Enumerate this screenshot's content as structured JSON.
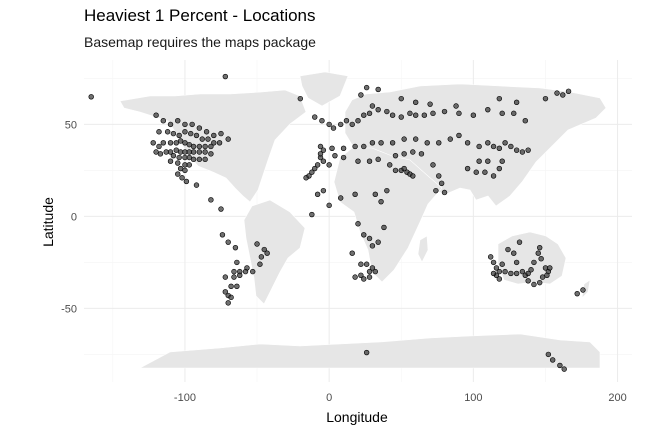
{
  "chart_data": {
    "type": "scatter",
    "title": "Heaviest 1 Percent - Locations",
    "subtitle": "Basemap requires the maps package",
    "xlabel": "Longitude",
    "ylabel": "Latitude",
    "xlim": [
      -170,
      210
    ],
    "ylim": [
      -90,
      85
    ],
    "xticks": [
      -100,
      0,
      100,
      200
    ],
    "yticks": [
      -50,
      0,
      50
    ],
    "grid": true,
    "points": [
      [
        -165,
        65
      ],
      [
        -72,
        76
      ],
      [
        -120,
        55
      ],
      [
        -115,
        52
      ],
      [
        -110,
        50
      ],
      [
        -105,
        52
      ],
      [
        -100,
        50
      ],
      [
        -95,
        50
      ],
      [
        -90,
        48
      ],
      [
        -85,
        46
      ],
      [
        -80,
        44
      ],
      [
        -75,
        45
      ],
      [
        -70,
        42
      ],
      [
        -118,
        46
      ],
      [
        -112,
        46
      ],
      [
        -108,
        45
      ],
      [
        -104,
        44
      ],
      [
        -100,
        46
      ],
      [
        -96,
        45
      ],
      [
        -92,
        44
      ],
      [
        -88,
        42
      ],
      [
        -84,
        42
      ],
      [
        -80,
        40
      ],
      [
        -76,
        40
      ],
      [
        -122,
        40
      ],
      [
        -118,
        38
      ],
      [
        -115,
        40
      ],
      [
        -110,
        40
      ],
      [
        -106,
        40
      ],
      [
        -103,
        41
      ],
      [
        -100,
        40
      ],
      [
        -97,
        39
      ],
      [
        -94,
        38
      ],
      [
        -90,
        38
      ],
      [
        -86,
        38
      ],
      [
        -82,
        38
      ],
      [
        -120,
        35
      ],
      [
        -117,
        34
      ],
      [
        -113,
        35
      ],
      [
        -110,
        35
      ],
      [
        -106,
        36
      ],
      [
        -103,
        35
      ],
      [
        -100,
        35
      ],
      [
        -97,
        35
      ],
      [
        -94,
        35
      ],
      [
        -90,
        35
      ],
      [
        -86,
        35
      ],
      [
        -82,
        34
      ],
      [
        -108,
        33
      ],
      [
        -104,
        32
      ],
      [
        -100,
        32
      ],
      [
        -97,
        32
      ],
      [
        -94,
        31
      ],
      [
        -90,
        31
      ],
      [
        -86,
        31
      ],
      [
        -110,
        30
      ],
      [
        -105,
        29
      ],
      [
        -100,
        28
      ],
      [
        -97,
        28
      ],
      [
        -103,
        26
      ],
      [
        -100,
        25
      ],
      [
        -105,
        23
      ],
      [
        -102,
        21
      ],
      [
        -99,
        19
      ],
      [
        -92,
        17
      ],
      [
        -82,
        9
      ],
      [
        -75,
        4
      ],
      [
        -74,
        -10
      ],
      [
        -70,
        -14
      ],
      [
        -65,
        -17
      ],
      [
        -50,
        -15
      ],
      [
        -45,
        -18
      ],
      [
        -47,
        -22
      ],
      [
        -43,
        -20
      ],
      [
        -64,
        -25
      ],
      [
        -57,
        -28
      ],
      [
        -66,
        -30
      ],
      [
        -62,
        -30
      ],
      [
        -58,
        -30
      ],
      [
        -53,
        -30
      ],
      [
        -48,
        -26
      ],
      [
        -72,
        -33
      ],
      [
        -66,
        -33
      ],
      [
        -62,
        -32
      ],
      [
        -68,
        -38
      ],
      [
        -64,
        -38
      ],
      [
        -72,
        -41
      ],
      [
        -70,
        -43
      ],
      [
        -68,
        -44
      ],
      [
        -70,
        -47
      ],
      [
        -20,
        64
      ],
      [
        -10,
        54
      ],
      [
        -5,
        52
      ],
      [
        0,
        50
      ],
      [
        3,
        48
      ],
      [
        8,
        50
      ],
      [
        12,
        52
      ],
      [
        16,
        50
      ],
      [
        20,
        52
      ],
      [
        24,
        55
      ],
      [
        28,
        56
      ],
      [
        30,
        60
      ],
      [
        34,
        58
      ],
      [
        40,
        57
      ],
      [
        44,
        55
      ],
      [
        50,
        54
      ],
      [
        56,
        56
      ],
      [
        60,
        55
      ],
      [
        66,
        55
      ],
      [
        72,
        56
      ],
      [
        80,
        57
      ],
      [
        90,
        56
      ],
      [
        100,
        55
      ],
      [
        110,
        58
      ],
      [
        120,
        56
      ],
      [
        128,
        56
      ],
      [
        136,
        52
      ],
      [
        22,
        66
      ],
      [
        26,
        70
      ],
      [
        34,
        69
      ],
      [
        50,
        64
      ],
      [
        60,
        62
      ],
      [
        70,
        61
      ],
      [
        88,
        60
      ],
      [
        118,
        64
      ],
      [
        130,
        62
      ],
      [
        150,
        64
      ],
      [
        158,
        67
      ],
      [
        162,
        66
      ],
      [
        166,
        68
      ],
      [
        -6,
        38
      ],
      [
        -4,
        36
      ],
      [
        2,
        37
      ],
      [
        10,
        37
      ],
      [
        18,
        38
      ],
      [
        24,
        38
      ],
      [
        30,
        40
      ],
      [
        36,
        40
      ],
      [
        44,
        40
      ],
      [
        52,
        42
      ],
      [
        60,
        42
      ],
      [
        68,
        40
      ],
      [
        76,
        40
      ],
      [
        84,
        42
      ],
      [
        90,
        44
      ],
      [
        96,
        40
      ],
      [
        104,
        38
      ],
      [
        110,
        40
      ],
      [
        114,
        38
      ],
      [
        118,
        37
      ],
      [
        122,
        40
      ],
      [
        126,
        38
      ],
      [
        130,
        36
      ],
      [
        134,
        35
      ],
      [
        138,
        36
      ],
      [
        -6,
        32
      ],
      [
        -4,
        30
      ],
      [
        0,
        28
      ],
      [
        -8,
        28
      ],
      [
        -10,
        26
      ],
      [
        -12,
        24
      ],
      [
        -14,
        22
      ],
      [
        -16,
        21
      ],
      [
        -6,
        34
      ],
      [
        4,
        33
      ],
      [
        10,
        32
      ],
      [
        20,
        30
      ],
      [
        28,
        30
      ],
      [
        34,
        31
      ],
      [
        42,
        28
      ],
      [
        46,
        25
      ],
      [
        50,
        25
      ],
      [
        54,
        24
      ],
      [
        56,
        23
      ],
      [
        58,
        22
      ],
      [
        52,
        26
      ],
      [
        46,
        33
      ],
      [
        52,
        34
      ],
      [
        58,
        35
      ],
      [
        64,
        34
      ],
      [
        72,
        28
      ],
      [
        76,
        22
      ],
      [
        78,
        18
      ],
      [
        74,
        14
      ],
      [
        80,
        13
      ],
      [
        96,
        26
      ],
      [
        102,
        24
      ],
      [
        108,
        24
      ],
      [
        114,
        22
      ],
      [
        118,
        26
      ],
      [
        110,
        30
      ],
      [
        104,
        30
      ],
      [
        120,
        30
      ],
      [
        -8,
        12
      ],
      [
        0,
        6
      ],
      [
        -4,
        14
      ],
      [
        8,
        10
      ],
      [
        18,
        12
      ],
      [
        32,
        12
      ],
      [
        40,
        14
      ],
      [
        36,
        8
      ],
      [
        -12,
        1
      ],
      [
        20,
        -4
      ],
      [
        24,
        -10
      ],
      [
        28,
        -12
      ],
      [
        30,
        -16
      ],
      [
        34,
        -14
      ],
      [
        38,
        -6
      ],
      [
        16,
        -20
      ],
      [
        22,
        -26
      ],
      [
        26,
        -26
      ],
      [
        28,
        -30
      ],
      [
        30,
        -28
      ],
      [
        22,
        -32
      ],
      [
        18,
        -33
      ],
      [
        24,
        -34
      ],
      [
        28,
        -33
      ],
      [
        32,
        -30
      ],
      [
        26,
        -74
      ],
      [
        152,
        -75
      ],
      [
        155,
        -78
      ],
      [
        160,
        -81
      ],
      [
        163,
        -83
      ],
      [
        112,
        -22
      ],
      [
        114,
        -25
      ],
      [
        116,
        -28
      ],
      [
        118,
        -30
      ],
      [
        116,
        -32
      ],
      [
        118,
        -34
      ],
      [
        114,
        -31
      ],
      [
        120,
        -26
      ],
      [
        122,
        -30
      ],
      [
        126,
        -31
      ],
      [
        130,
        -31
      ],
      [
        134,
        -30
      ],
      [
        136,
        -32
      ],
      [
        138,
        -31
      ],
      [
        140,
        -29
      ],
      [
        142,
        -25
      ],
      [
        145,
        -20
      ],
      [
        147,
        -23
      ],
      [
        150,
        -28
      ],
      [
        152,
        -30
      ],
      [
        148,
        -33
      ],
      [
        146,
        -36
      ],
      [
        142,
        -37
      ],
      [
        138,
        -35
      ],
      [
        130,
        -25
      ],
      [
        128,
        -20
      ],
      [
        124,
        -18
      ],
      [
        132,
        -14
      ],
      [
        146,
        -17
      ],
      [
        151,
        -32
      ],
      [
        153,
        -28
      ],
      [
        172,
        -42
      ],
      [
        176,
        -40
      ]
    ]
  }
}
